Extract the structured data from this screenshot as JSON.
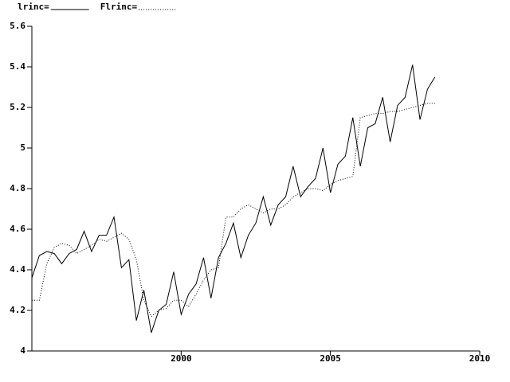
{
  "chart_data": {
    "type": "line",
    "x": [
      1995,
      1995.25,
      1995.5,
      1995.75,
      1996,
      1996.25,
      1996.5,
      1996.75,
      1997,
      1997.25,
      1997.5,
      1997.75,
      1998,
      1998.25,
      1998.5,
      1998.75,
      1999,
      1999.25,
      1999.5,
      1999.75,
      2000,
      2000.25,
      2000.5,
      2000.75,
      2001,
      2001.25,
      2001.5,
      2001.75,
      2002,
      2002.25,
      2002.5,
      2002.75,
      2003,
      2003.25,
      2003.5,
      2003.75,
      2004,
      2004.25,
      2004.5,
      2004.75,
      2005,
      2005.25,
      2005.5,
      2005.75,
      2006,
      2006.25,
      2006.5,
      2006.75,
      2007,
      2007.25,
      2007.5,
      2007.75,
      2008,
      2008.25,
      2008.5
    ],
    "series": [
      {
        "name": "lrinc=",
        "color": "#000000",
        "dash": "solid",
        "values": [
          4.36,
          4.47,
          4.49,
          4.48,
          4.43,
          4.48,
          4.5,
          4.59,
          4.49,
          4.57,
          4.57,
          4.66,
          4.41,
          4.45,
          4.15,
          4.3,
          4.09,
          4.2,
          4.23,
          4.39,
          4.18,
          4.28,
          4.33,
          4.46,
          4.26,
          4.46,
          4.53,
          4.63,
          4.46,
          4.57,
          4.63,
          4.76,
          4.62,
          4.72,
          4.76,
          4.91,
          4.76,
          4.81,
          4.85,
          5.0,
          4.78,
          4.92,
          4.96,
          5.15,
          4.91,
          5.1,
          5.12,
          5.25,
          5.03,
          5.21,
          5.25,
          5.41,
          5.14,
          5.29,
          5.35
        ]
      },
      {
        "name": "Flrinc=",
        "color": "#000000",
        "dash": "dotted",
        "values": [
          4.25,
          4.25,
          4.43,
          4.51,
          4.53,
          4.52,
          4.48,
          4.5,
          4.52,
          4.55,
          4.54,
          4.56,
          4.58,
          4.55,
          4.45,
          4.25,
          4.17,
          4.2,
          4.21,
          4.25,
          4.25,
          4.22,
          4.28,
          4.35,
          4.4,
          4.41,
          4.66,
          4.66,
          4.7,
          4.72,
          4.7,
          4.68,
          4.7,
          4.7,
          4.72,
          4.76,
          4.78,
          4.8,
          4.8,
          4.79,
          4.82,
          4.84,
          4.85,
          4.86,
          5.15,
          5.16,
          5.17,
          5.17,
          5.18,
          5.18,
          5.19,
          5.2,
          5.21,
          5.22,
          5.22
        ]
      }
    ],
    "xlim": [
      1995,
      2010
    ],
    "xticks": [
      2000,
      2005,
      2010
    ],
    "ylim": [
      4,
      5.6
    ],
    "yticks": [
      4,
      4.2,
      4.4,
      4.6,
      4.8,
      5,
      5.2,
      5.4,
      5.6
    ],
    "legend": "top-left",
    "grid": false
  }
}
